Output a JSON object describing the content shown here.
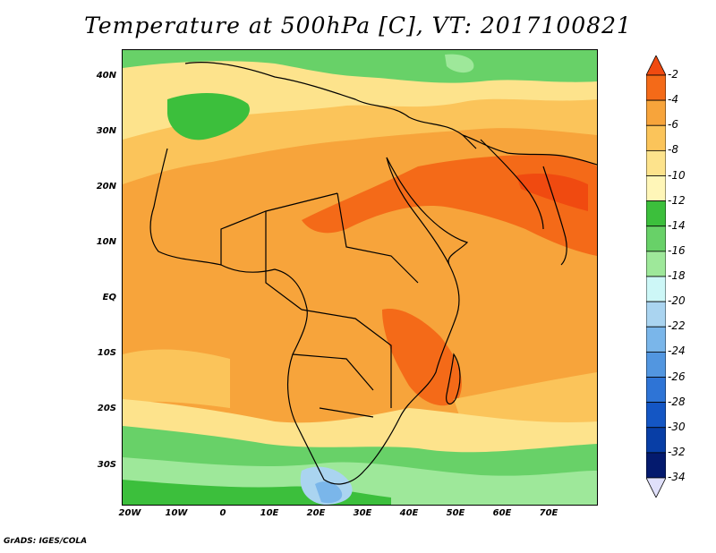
{
  "title": "Temperature at 500hPa [C], VT: 2017100821",
  "credit": "GrADS: IGES/COLA",
  "lat_ticks": [
    "40N",
    "30N",
    "20N",
    "10N",
    "EQ",
    "10S",
    "20S",
    "30S"
  ],
  "lon_ticks": [
    "20W",
    "10W",
    "0",
    "10E",
    "20E",
    "30E",
    "40E",
    "50E",
    "60E",
    "70E"
  ],
  "colorbar": {
    "labels": [
      "-2",
      "-4",
      "-6",
      "-8",
      "-10",
      "-12",
      "-14",
      "-16",
      "-18",
      "-20",
      "-22",
      "-24",
      "-26",
      "-28",
      "-30",
      "-32",
      "-34"
    ],
    "colors": [
      "#f04a10",
      "#f46a18",
      "#f7a43b",
      "#fbc45a",
      "#fde38c",
      "#fff6b8",
      "#3cbf3c",
      "#68d168",
      "#9ee89a",
      "#cdf7f7",
      "#aad4f0",
      "#7ab6ea",
      "#5296e0",
      "#2e74d6",
      "#1456c4",
      "#083ea6",
      "#041a6e",
      "#e0e0fa"
    ]
  },
  "map": {
    "field_colors": {
      "warm_max": "#f04a10",
      "warm": "#f46a18",
      "mid": "#f7a43b",
      "mild": "#fbc45a",
      "cool": "#fde38c",
      "cooler": "#fff6b8",
      "green": "#3cbf3c",
      "green_light": "#68d168",
      "green_pale": "#9ee89a",
      "blue_pale": "#aad4f0",
      "blue": "#7ab6ea"
    },
    "boundary_color": "#000000"
  }
}
